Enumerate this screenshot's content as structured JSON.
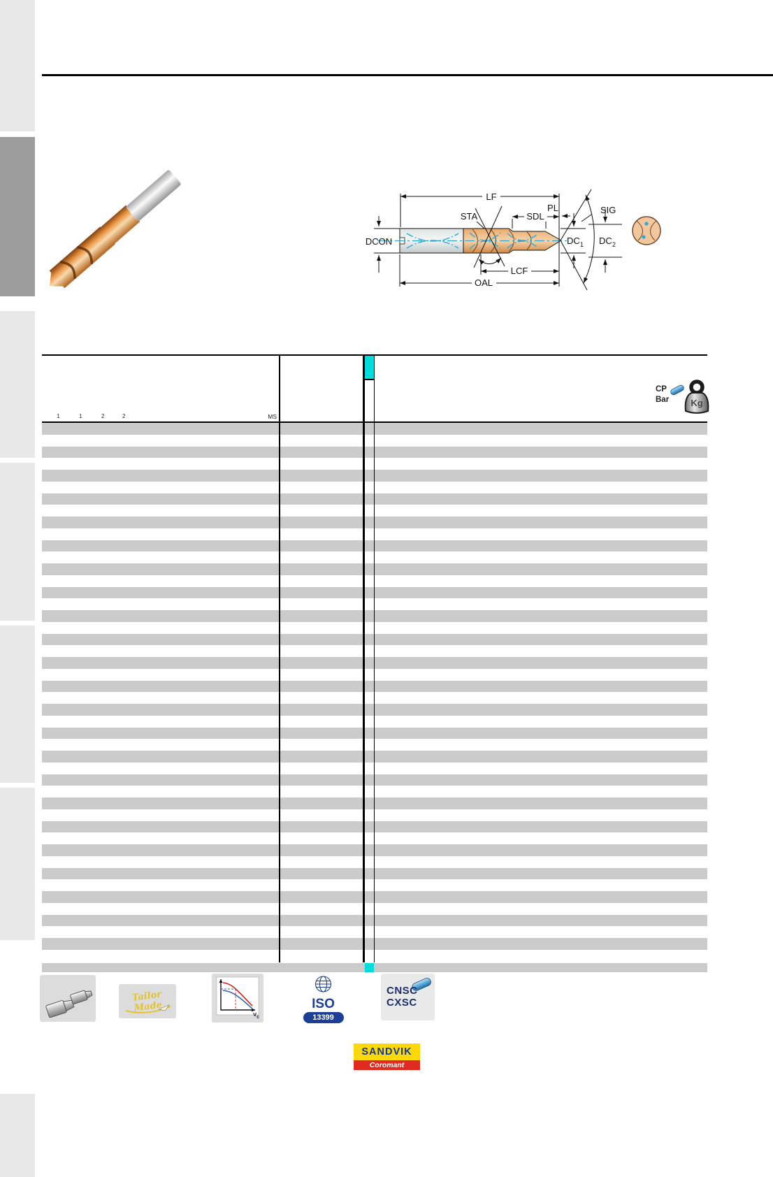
{
  "colors": {
    "highlight_cyan": "#00dcdc",
    "row_stripe_gray": "#cbcbcb",
    "sidebar_light": "#e8e8e8",
    "sidebar_active": "#9d9d9d",
    "diagram_blue": "#2fa8d5",
    "drill_orange": "#cf7a2a",
    "sandvik_yellow": "#fcd70a",
    "sandvik_blue": "#123a8f",
    "coromant_red": "#e02a1f",
    "iso_blue": "#1b3f94"
  },
  "diagram": {
    "lf": "LF",
    "pl": "PL",
    "sig": "SIG",
    "sta": "STA",
    "sdl": "SDL",
    "dcon": "DCON",
    "dc_base": "DC",
    "dc1_sub": "1",
    "dc2_sub": "2",
    "lcf": "LCF",
    "oal": "OAL"
  },
  "table": {
    "header_marks": [
      "1",
      "1",
      "2",
      "2"
    ],
    "ms_label": "MS",
    "cp_label": "CP",
    "bar_label": "Bar",
    "kg_label": "Kg",
    "row_count": 23
  },
  "footer": {
    "tailor_made": "Tailor Made",
    "chart_vc_base": "v",
    "chart_vc_sub": "c",
    "iso_label": "ISO",
    "iso_number": "13399",
    "cnsc_label": "CNSC",
    "cxsc_label": "CXSC",
    "sandvik_label": "SANDVIK",
    "coromant_label": "Coromant"
  }
}
